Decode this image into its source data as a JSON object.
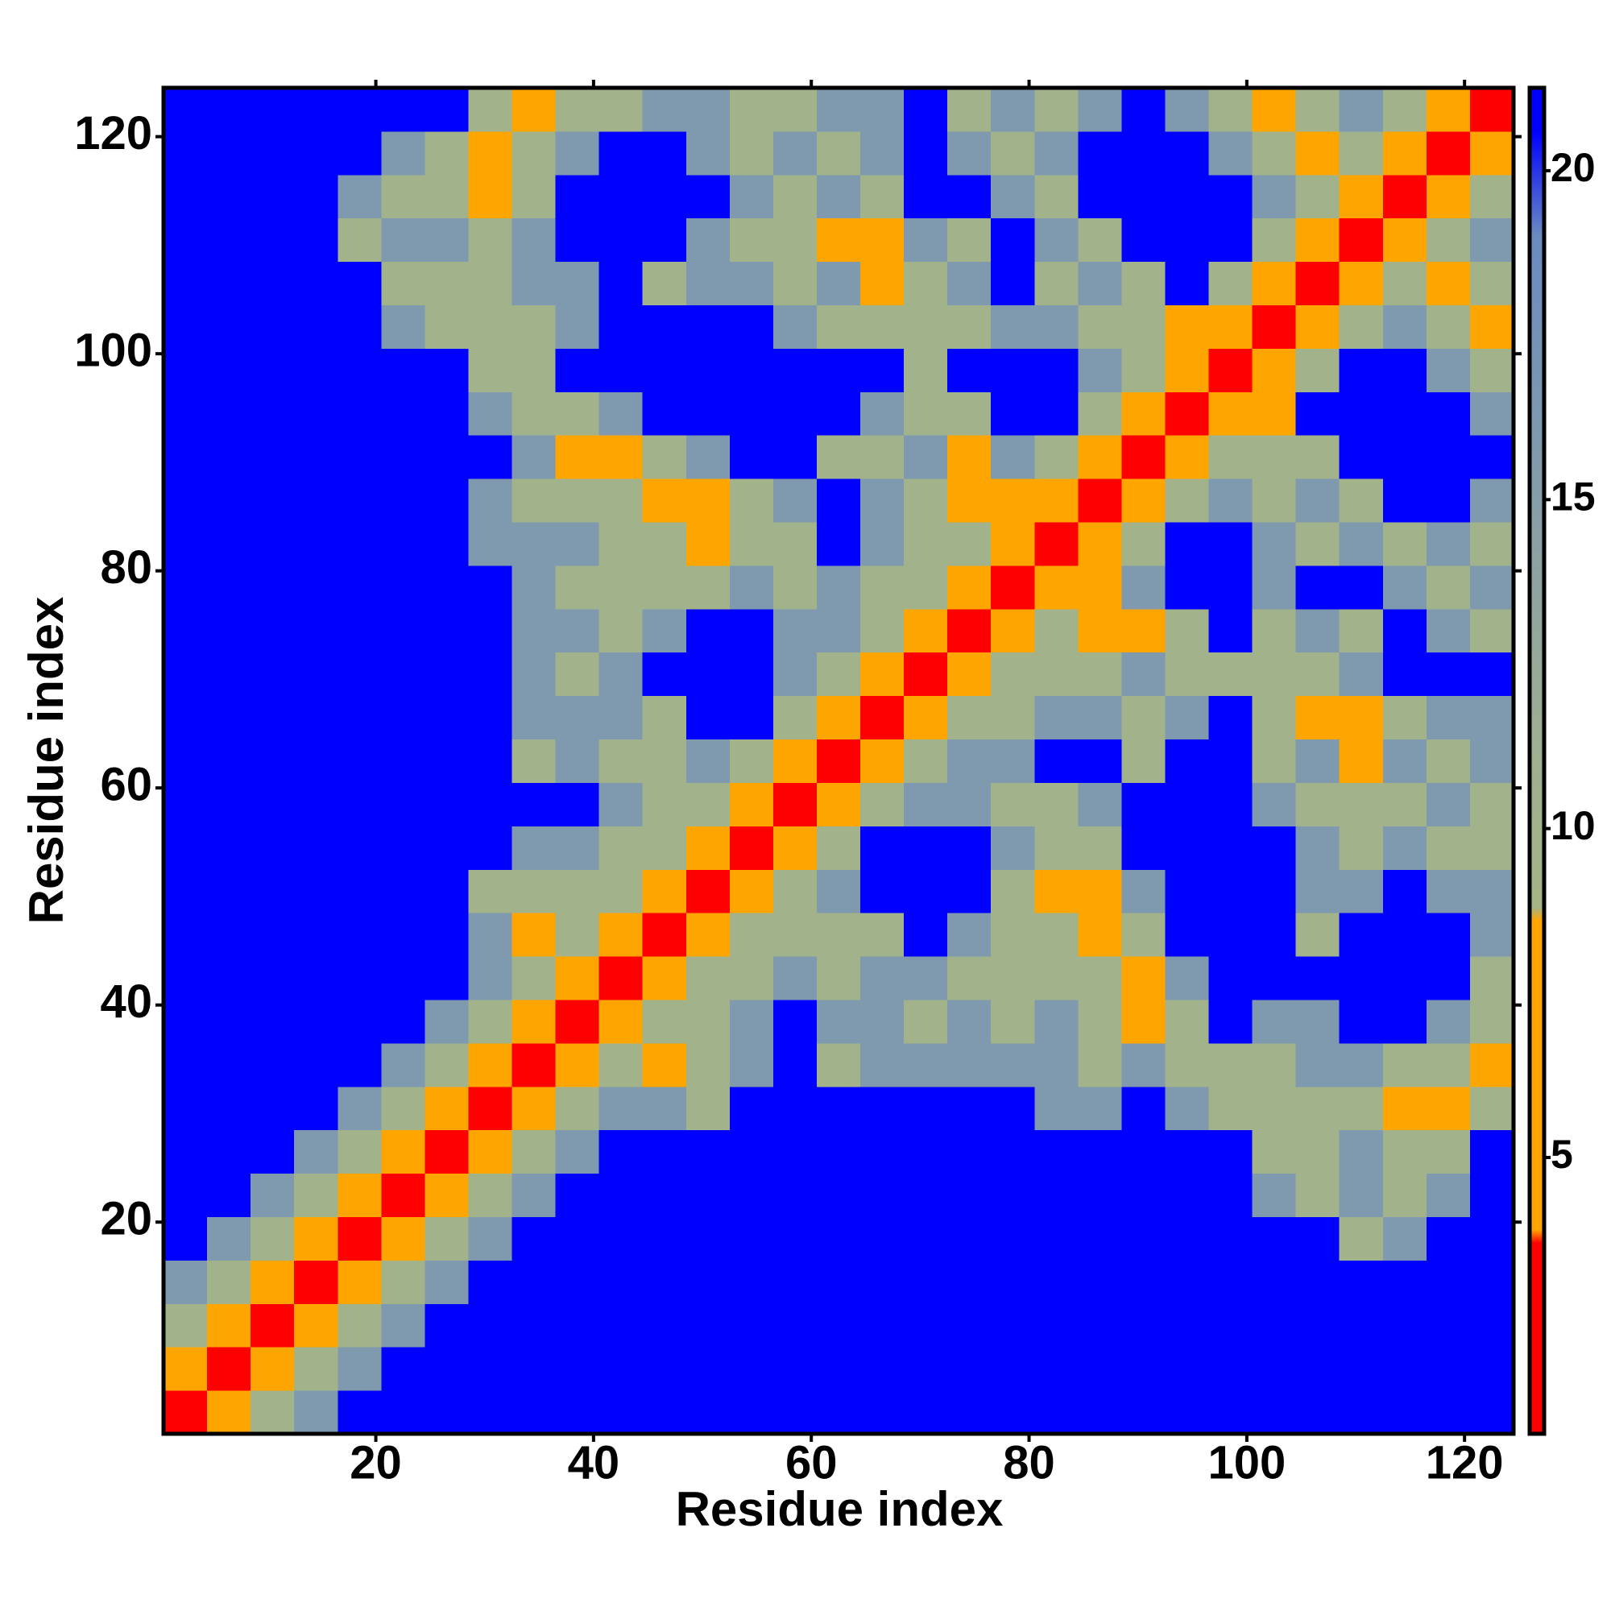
{
  "chart_data": {
    "type": "heatmap",
    "x_label": "Residue index",
    "y_label": "Residue index",
    "bins": [
      0.5,
      4.5,
      8.5,
      12.5,
      16.5,
      20.5,
      24.5,
      28.5,
      32.5,
      36.5,
      40.5,
      44.5,
      48.5,
      52.5,
      56.5,
      60.5,
      64.5,
      68.5,
      72.5,
      76.5,
      80.5,
      84.5,
      88.5,
      92.5,
      96.5,
      100.5,
      104.5,
      108.5,
      112.5,
      116.5,
      120.5,
      124.5
    ],
    "z": [
      [
        2,
        6,
        10,
        16,
        21,
        21,
        21,
        21,
        21,
        21,
        21,
        21,
        21,
        21,
        21,
        21,
        21,
        21,
        21,
        21,
        21,
        21,
        21,
        21,
        21,
        21,
        21,
        21,
        21,
        21,
        21
      ],
      [
        6,
        2,
        6,
        10,
        16,
        21,
        21,
        21,
        21,
        21,
        21,
        21,
        21,
        21,
        21,
        21,
        21,
        21,
        21,
        21,
        21,
        21,
        21,
        21,
        21,
        21,
        21,
        21,
        21,
        21,
        21
      ],
      [
        10,
        6,
        2,
        6,
        10,
        16,
        21,
        21,
        21,
        21,
        21,
        21,
        21,
        21,
        21,
        21,
        21,
        21,
        21,
        21,
        21,
        21,
        21,
        21,
        21,
        21,
        21,
        21,
        21,
        21,
        21
      ],
      [
        16,
        10,
        6,
        2,
        6,
        10,
        16,
        21,
        21,
        21,
        21,
        21,
        21,
        21,
        21,
        21,
        21,
        21,
        21,
        21,
        21,
        21,
        21,
        21,
        21,
        21,
        21,
        21,
        21,
        21,
        21
      ],
      [
        21,
        16,
        10,
        6,
        2,
        6,
        10,
        16,
        21,
        21,
        21,
        21,
        21,
        21,
        21,
        21,
        21,
        21,
        21,
        21,
        21,
        21,
        21,
        21,
        21,
        21,
        21,
        10,
        16,
        21,
        21
      ],
      [
        21,
        21,
        16,
        10,
        6,
        2,
        6,
        10,
        16,
        21,
        21,
        21,
        21,
        21,
        21,
        21,
        21,
        21,
        21,
        21,
        21,
        21,
        21,
        21,
        21,
        16,
        10,
        16,
        10,
        16,
        21
      ],
      [
        21,
        21,
        21,
        16,
        10,
        6,
        2,
        6,
        10,
        16,
        21,
        21,
        21,
        21,
        21,
        21,
        21,
        21,
        21,
        21,
        21,
        21,
        21,
        21,
        21,
        10,
        10,
        16,
        10,
        10,
        21
      ],
      [
        21,
        21,
        21,
        21,
        16,
        10,
        6,
        2,
        6,
        10,
        16,
        16,
        10,
        21,
        21,
        21,
        21,
        21,
        21,
        21,
        16,
        16,
        21,
        16,
        10,
        10,
        10,
        10,
        6,
        6,
        10
      ],
      [
        21,
        21,
        21,
        21,
        21,
        16,
        10,
        6,
        2,
        6,
        10,
        6,
        10,
        16,
        21,
        10,
        16,
        16,
        16,
        16,
        16,
        10,
        16,
        10,
        10,
        10,
        16,
        16,
        10,
        10,
        6
      ],
      [
        21,
        21,
        21,
        21,
        21,
        21,
        16,
        10,
        6,
        2,
        6,
        10,
        10,
        16,
        21,
        16,
        16,
        10,
        16,
        10,
        16,
        10,
        6,
        10,
        21,
        16,
        16,
        21,
        21,
        16,
        10
      ],
      [
        21,
        21,
        21,
        21,
        21,
        21,
        21,
        16,
        10,
        6,
        2,
        6,
        10,
        10,
        16,
        10,
        16,
        16,
        10,
        10,
        10,
        10,
        6,
        16,
        21,
        21,
        21,
        21,
        21,
        21,
        10
      ],
      [
        21,
        21,
        21,
        21,
        21,
        21,
        21,
        16,
        6,
        10,
        6,
        2,
        6,
        10,
        10,
        10,
        10,
        21,
        16,
        10,
        10,
        6,
        10,
        21,
        21,
        21,
        10,
        21,
        21,
        21,
        16
      ],
      [
        21,
        21,
        21,
        21,
        21,
        21,
        21,
        10,
        10,
        10,
        10,
        6,
        2,
        6,
        10,
        16,
        21,
        21,
        21,
        10,
        6,
        6,
        16,
        21,
        21,
        21,
        16,
        16,
        21,
        16,
        16
      ],
      [
        21,
        21,
        21,
        21,
        21,
        21,
        21,
        21,
        16,
        16,
        10,
        10,
        6,
        2,
        6,
        10,
        21,
        21,
        21,
        16,
        10,
        10,
        21,
        21,
        21,
        21,
        16,
        10,
        16,
        10,
        10
      ],
      [
        21,
        21,
        21,
        21,
        21,
        21,
        21,
        21,
        21,
        21,
        16,
        10,
        10,
        6,
        2,
        6,
        10,
        16,
        16,
        10,
        10,
        16,
        21,
        21,
        21,
        16,
        10,
        10,
        10,
        16,
        10
      ],
      [
        21,
        21,
        21,
        21,
        21,
        21,
        21,
        21,
        10,
        16,
        10,
        10,
        16,
        10,
        6,
        2,
        6,
        10,
        16,
        16,
        21,
        21,
        10,
        21,
        21,
        10,
        16,
        6,
        16,
        10,
        16
      ],
      [
        21,
        21,
        21,
        21,
        21,
        21,
        21,
        21,
        16,
        16,
        16,
        10,
        21,
        21,
        10,
        6,
        2,
        6,
        10,
        10,
        16,
        16,
        10,
        16,
        21,
        10,
        6,
        6,
        10,
        16,
        16
      ],
      [
        21,
        21,
        21,
        21,
        21,
        21,
        21,
        21,
        16,
        10,
        16,
        21,
        21,
        21,
        16,
        10,
        6,
        2,
        6,
        10,
        10,
        10,
        16,
        10,
        10,
        10,
        10,
        16,
        21,
        21,
        21
      ],
      [
        21,
        21,
        21,
        21,
        21,
        21,
        21,
        21,
        16,
        16,
        10,
        16,
        21,
        21,
        16,
        16,
        10,
        6,
        2,
        6,
        10,
        6,
        6,
        10,
        21,
        10,
        16,
        10,
        21,
        16,
        10
      ],
      [
        21,
        21,
        21,
        21,
        21,
        21,
        21,
        21,
        16,
        10,
        10,
        10,
        10,
        16,
        10,
        16,
        10,
        10,
        6,
        2,
        6,
        6,
        16,
        21,
        21,
        16,
        21,
        21,
        16,
        10,
        16
      ],
      [
        21,
        21,
        21,
        21,
        21,
        21,
        21,
        16,
        16,
        16,
        10,
        10,
        6,
        10,
        10,
        21,
        16,
        10,
        10,
        6,
        2,
        6,
        10,
        21,
        21,
        16,
        10,
        16,
        10,
        16,
        10
      ],
      [
        21,
        21,
        21,
        21,
        21,
        21,
        21,
        16,
        10,
        10,
        10,
        6,
        6,
        10,
        16,
        21,
        16,
        10,
        6,
        6,
        6,
        2,
        6,
        10,
        16,
        10,
        16,
        10,
        21,
        21,
        16
      ],
      [
        21,
        21,
        21,
        21,
        21,
        21,
        21,
        21,
        16,
        6,
        6,
        10,
        16,
        21,
        21,
        10,
        10,
        16,
        6,
        16,
        10,
        6,
        2,
        6,
        10,
        10,
        10,
        21,
        21,
        21,
        21
      ],
      [
        21,
        21,
        21,
        21,
        21,
        21,
        21,
        16,
        10,
        10,
        16,
        21,
        21,
        21,
        21,
        21,
        16,
        10,
        10,
        21,
        21,
        10,
        6,
        2,
        6,
        6,
        21,
        21,
        21,
        21,
        16
      ],
      [
        21,
        21,
        21,
        21,
        21,
        21,
        21,
        10,
        10,
        21,
        21,
        21,
        21,
        21,
        21,
        21,
        21,
        10,
        21,
        21,
        21,
        16,
        10,
        6,
        2,
        6,
        10,
        21,
        21,
        16,
        10
      ],
      [
        21,
        21,
        21,
        21,
        21,
        16,
        10,
        10,
        10,
        16,
        21,
        21,
        21,
        21,
        16,
        10,
        10,
        10,
        10,
        16,
        16,
        10,
        10,
        6,
        6,
        2,
        6,
        10,
        16,
        10,
        6
      ],
      [
        21,
        21,
        21,
        21,
        21,
        10,
        10,
        10,
        16,
        16,
        21,
        10,
        16,
        16,
        10,
        16,
        6,
        10,
        16,
        21,
        10,
        16,
        10,
        21,
        10,
        6,
        2,
        6,
        10,
        6,
        10
      ],
      [
        21,
        21,
        21,
        21,
        10,
        16,
        16,
        10,
        16,
        21,
        21,
        21,
        16,
        10,
        10,
        6,
        6,
        16,
        10,
        21,
        16,
        10,
        21,
        21,
        21,
        10,
        6,
        2,
        6,
        10,
        16
      ],
      [
        21,
        21,
        21,
        21,
        16,
        10,
        10,
        6,
        10,
        21,
        21,
        21,
        21,
        16,
        10,
        16,
        10,
        21,
        21,
        16,
        10,
        21,
        21,
        21,
        21,
        16,
        10,
        6,
        2,
        6,
        10
      ],
      [
        21,
        21,
        21,
        21,
        21,
        16,
        10,
        6,
        10,
        16,
        21,
        21,
        16,
        10,
        16,
        10,
        16,
        21,
        16,
        10,
        16,
        21,
        21,
        21,
        16,
        10,
        6,
        10,
        6,
        2,
        6
      ],
      [
        21,
        21,
        21,
        21,
        21,
        21,
        21,
        10,
        6,
        10,
        10,
        16,
        16,
        10,
        10,
        16,
        16,
        21,
        10,
        16,
        10,
        16,
        21,
        16,
        10,
        6,
        10,
        16,
        10,
        6,
        2
      ]
    ],
    "xlim": [
      0.5,
      124.5
    ],
    "ylim": [
      0.5,
      124.5
    ],
    "xticks": [
      20,
      40,
      60,
      80,
      100,
      120
    ],
    "yticks": [
      20,
      40,
      60,
      80,
      100,
      120
    ],
    "colorbar": {
      "lim": [
        0.8,
        21.26
      ],
      "ticks": [
        5,
        10,
        15,
        20
      ]
    },
    "colormap": [
      {
        "value": 0.8,
        "color": "#ff0000"
      },
      {
        "value": 3.7,
        "color": "#ff0000"
      },
      {
        "value": 3.9,
        "color": "#ffa500"
      },
      {
        "value": 8.6,
        "color": "#ffa500"
      },
      {
        "value": 8.8,
        "color": "#a4b486"
      },
      {
        "value": 11,
        "color": "#a0b090"
      },
      {
        "value": 19,
        "color": "#6b8bc0"
      },
      {
        "value": 20.6,
        "color": "#0000ff"
      },
      {
        "value": 21.26,
        "color": "#0000ff"
      }
    ]
  }
}
